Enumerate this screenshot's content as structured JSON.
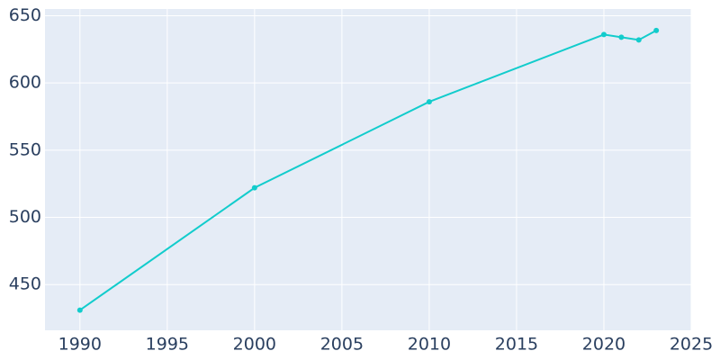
{
  "chart_data": {
    "type": "line",
    "x": [
      1990,
      2000,
      2010,
      2020,
      2021,
      2022,
      2023
    ],
    "series": [
      {
        "color": "#12cccc",
        "values": [
          431,
          522,
          586,
          636,
          634,
          632,
          639
        ]
      }
    ],
    "xlim": [
      1988,
      2025
    ],
    "xticks": [
      1990,
      1995,
      2000,
      2005,
      2010,
      2015,
      2020,
      2025
    ],
    "ylim": [
      416,
      655
    ],
    "yticks": [
      450,
      500,
      550,
      600,
      650
    ],
    "grid": true,
    "background": "#e5ecf6"
  }
}
